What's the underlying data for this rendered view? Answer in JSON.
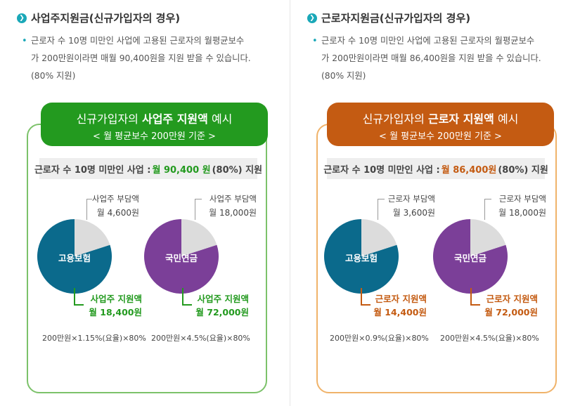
{
  "colors": {
    "teal": "#1aa8b8",
    "green": "#239a1f",
    "orange": "#c45b12",
    "insurance_blue": "#0b6a8c",
    "pension_purple": "#7b3f98",
    "share_gray": "#dcdcdc"
  },
  "employer": {
    "heading": "사업주지원금(신규가입자의 경우)",
    "desc_line1": "근로자 수 10명 미만인 사업에 고용된 근로자의 월평균보수",
    "desc_line2": "가 200만원이라면 매월 90,400원을 지원 받을 수 있습니다.",
    "desc_line3": "(80% 지원)",
    "title_prefix": "신규가입자의 ",
    "title_bold": "사업주 지원액",
    "title_suffix": " 예시",
    "title_sub": "< 월 평균보수 200만원 기준 >",
    "summary_prefix": "근로자 수 10명 미만인 사업 : ",
    "summary_amount": "월 90,400 원",
    "summary_suffix": "(80%) 지원",
    "pies": [
      {
        "name": "고용보험",
        "share_label": "사업주 부담액",
        "share_amount": "월 4,600원",
        "support_label": "사업주 지원액",
        "support_amount": "월 18,400원",
        "support_fraction": 0.8,
        "formula": "200만원×1.15%(요율)×80%"
      },
      {
        "name": "국민연금",
        "share_label": "사업주 부담액",
        "share_amount": "월 18,000원",
        "support_label": "사업주 지원액",
        "support_amount": "월 72,000원",
        "support_fraction": 0.8,
        "formula": "200만원×4.5%(요율)×80%"
      }
    ]
  },
  "worker": {
    "heading": "근로자지원금(신규가입자의 경우)",
    "desc_line1": "근로자 수 10명 미만인 사업에 고용된 근로자의 월평균보수",
    "desc_line2": "가 200만원이라면 매월 86,400원을 지원 받을 수 있습니다.",
    "desc_line3": "(80% 지원)",
    "title_prefix": "신규가입자의 ",
    "title_bold": "근로자 지원액",
    "title_suffix": " 예시",
    "title_sub": "< 월 평균보수 200만원 기준 >",
    "summary_prefix": "근로자 수 10명 미만인 사업 : ",
    "summary_amount": "월 86,400원",
    "summary_suffix": "(80%) 지원",
    "pies": [
      {
        "name": "고용보험",
        "share_label": "근로자 부담액",
        "share_amount": "월 3,600원",
        "support_label": "근로자 지원액",
        "support_amount": "월 14,400원",
        "support_fraction": 0.8,
        "formula": "200만원×0.9%(요율)×80%"
      },
      {
        "name": "국민연금",
        "share_label": "근로자 부담액",
        "share_amount": "월 18,000원",
        "support_label": "근로자 지원액",
        "support_amount": "월 72,000원",
        "support_fraction": 0.8,
        "formula": "200만원×4.5%(요율)×80%"
      }
    ]
  }
}
